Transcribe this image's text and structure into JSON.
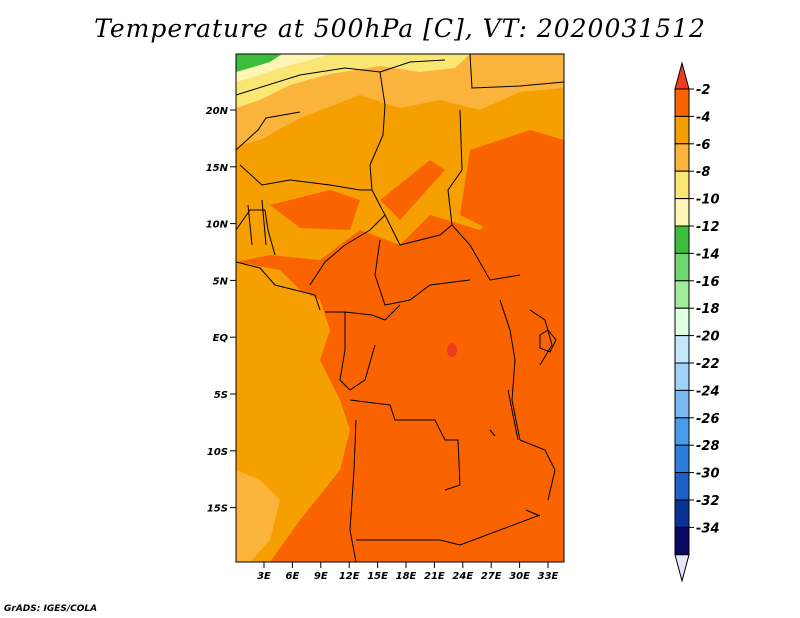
{
  "title": "Temperature at 500hPa [C], VT: 2020031512",
  "credit": "GrADS: IGES/COLA",
  "map": {
    "lat_labels": [
      "20N",
      "15N",
      "10N",
      "5N",
      "EQ",
      "5S",
      "10S",
      "15S"
    ],
    "lon_labels": [
      "3E",
      "6E",
      "9E",
      "12E",
      "15E",
      "18E",
      "21E",
      "24E",
      "27E",
      "30E",
      "33E"
    ]
  },
  "colorbar": {
    "labels": [
      "-2",
      "-4",
      "-6",
      "-8",
      "-10",
      "-12",
      "-14",
      "-16",
      "-18",
      "-20",
      "-22",
      "-24",
      "-26",
      "-28",
      "-30",
      "-32",
      "-34"
    ],
    "colors": [
      "#f03c1e",
      "#fa6400",
      "#f5a000",
      "#fab43c",
      "#fae673",
      "#fff5b4",
      "#3cbe3c",
      "#6ed76e",
      "#a0ec9b",
      "#e1ffe1",
      "#c8e6fa",
      "#a0d2fa",
      "#78b9f0",
      "#4b9beb",
      "#2d7ddc",
      "#1e5fc8",
      "#0a3296",
      "#0a0a64",
      "#e6e6fa"
    ]
  }
}
